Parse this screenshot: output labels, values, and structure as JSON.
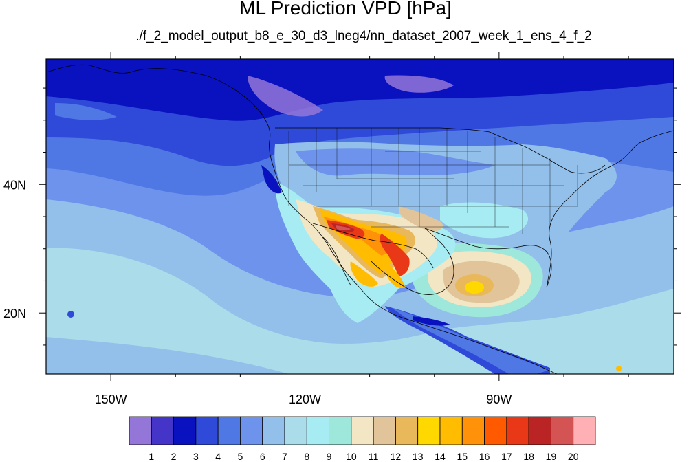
{
  "title": "ML Prediction VPD [hPa]",
  "subtitle": "./f_2_model_output_b8_e_30_d3_lneg4/nn_dataset_2007_week_1_ens_4_f_2",
  "lon_ticks": [
    {
      "value": -150,
      "label": "150W"
    },
    {
      "value": -120,
      "label": "120W"
    },
    {
      "value": -90,
      "label": "90W"
    }
  ],
  "lat_ticks": [
    {
      "value": 40,
      "label": "40N"
    },
    {
      "value": 20,
      "label": "20N"
    }
  ],
  "extent": {
    "lon_min": -160,
    "lon_max": -63,
    "lat_min": 10.5,
    "lat_max": 59.5
  },
  "colorbar": {
    "levels": [
      "1",
      "2",
      "3",
      "4",
      "5",
      "6",
      "7",
      "8",
      "9",
      "10",
      "11",
      "12",
      "13",
      "14",
      "15",
      "16",
      "17",
      "18",
      "19",
      "20"
    ],
    "colors": [
      "#9475d8",
      "#4534c8",
      "#0a12c0",
      "#2f4ad8",
      "#4f78e4",
      "#6e93ec",
      "#93c0ea",
      "#abdcea",
      "#a6ecf2",
      "#9de8da",
      "#f2e6c4",
      "#e2c49a",
      "#e8b85a",
      "#ffd800",
      "#ffbc00",
      "#ff9208",
      "#ff5a00",
      "#e83818",
      "#ba2424",
      "#d45454",
      "#ffb0b4"
    ]
  }
}
